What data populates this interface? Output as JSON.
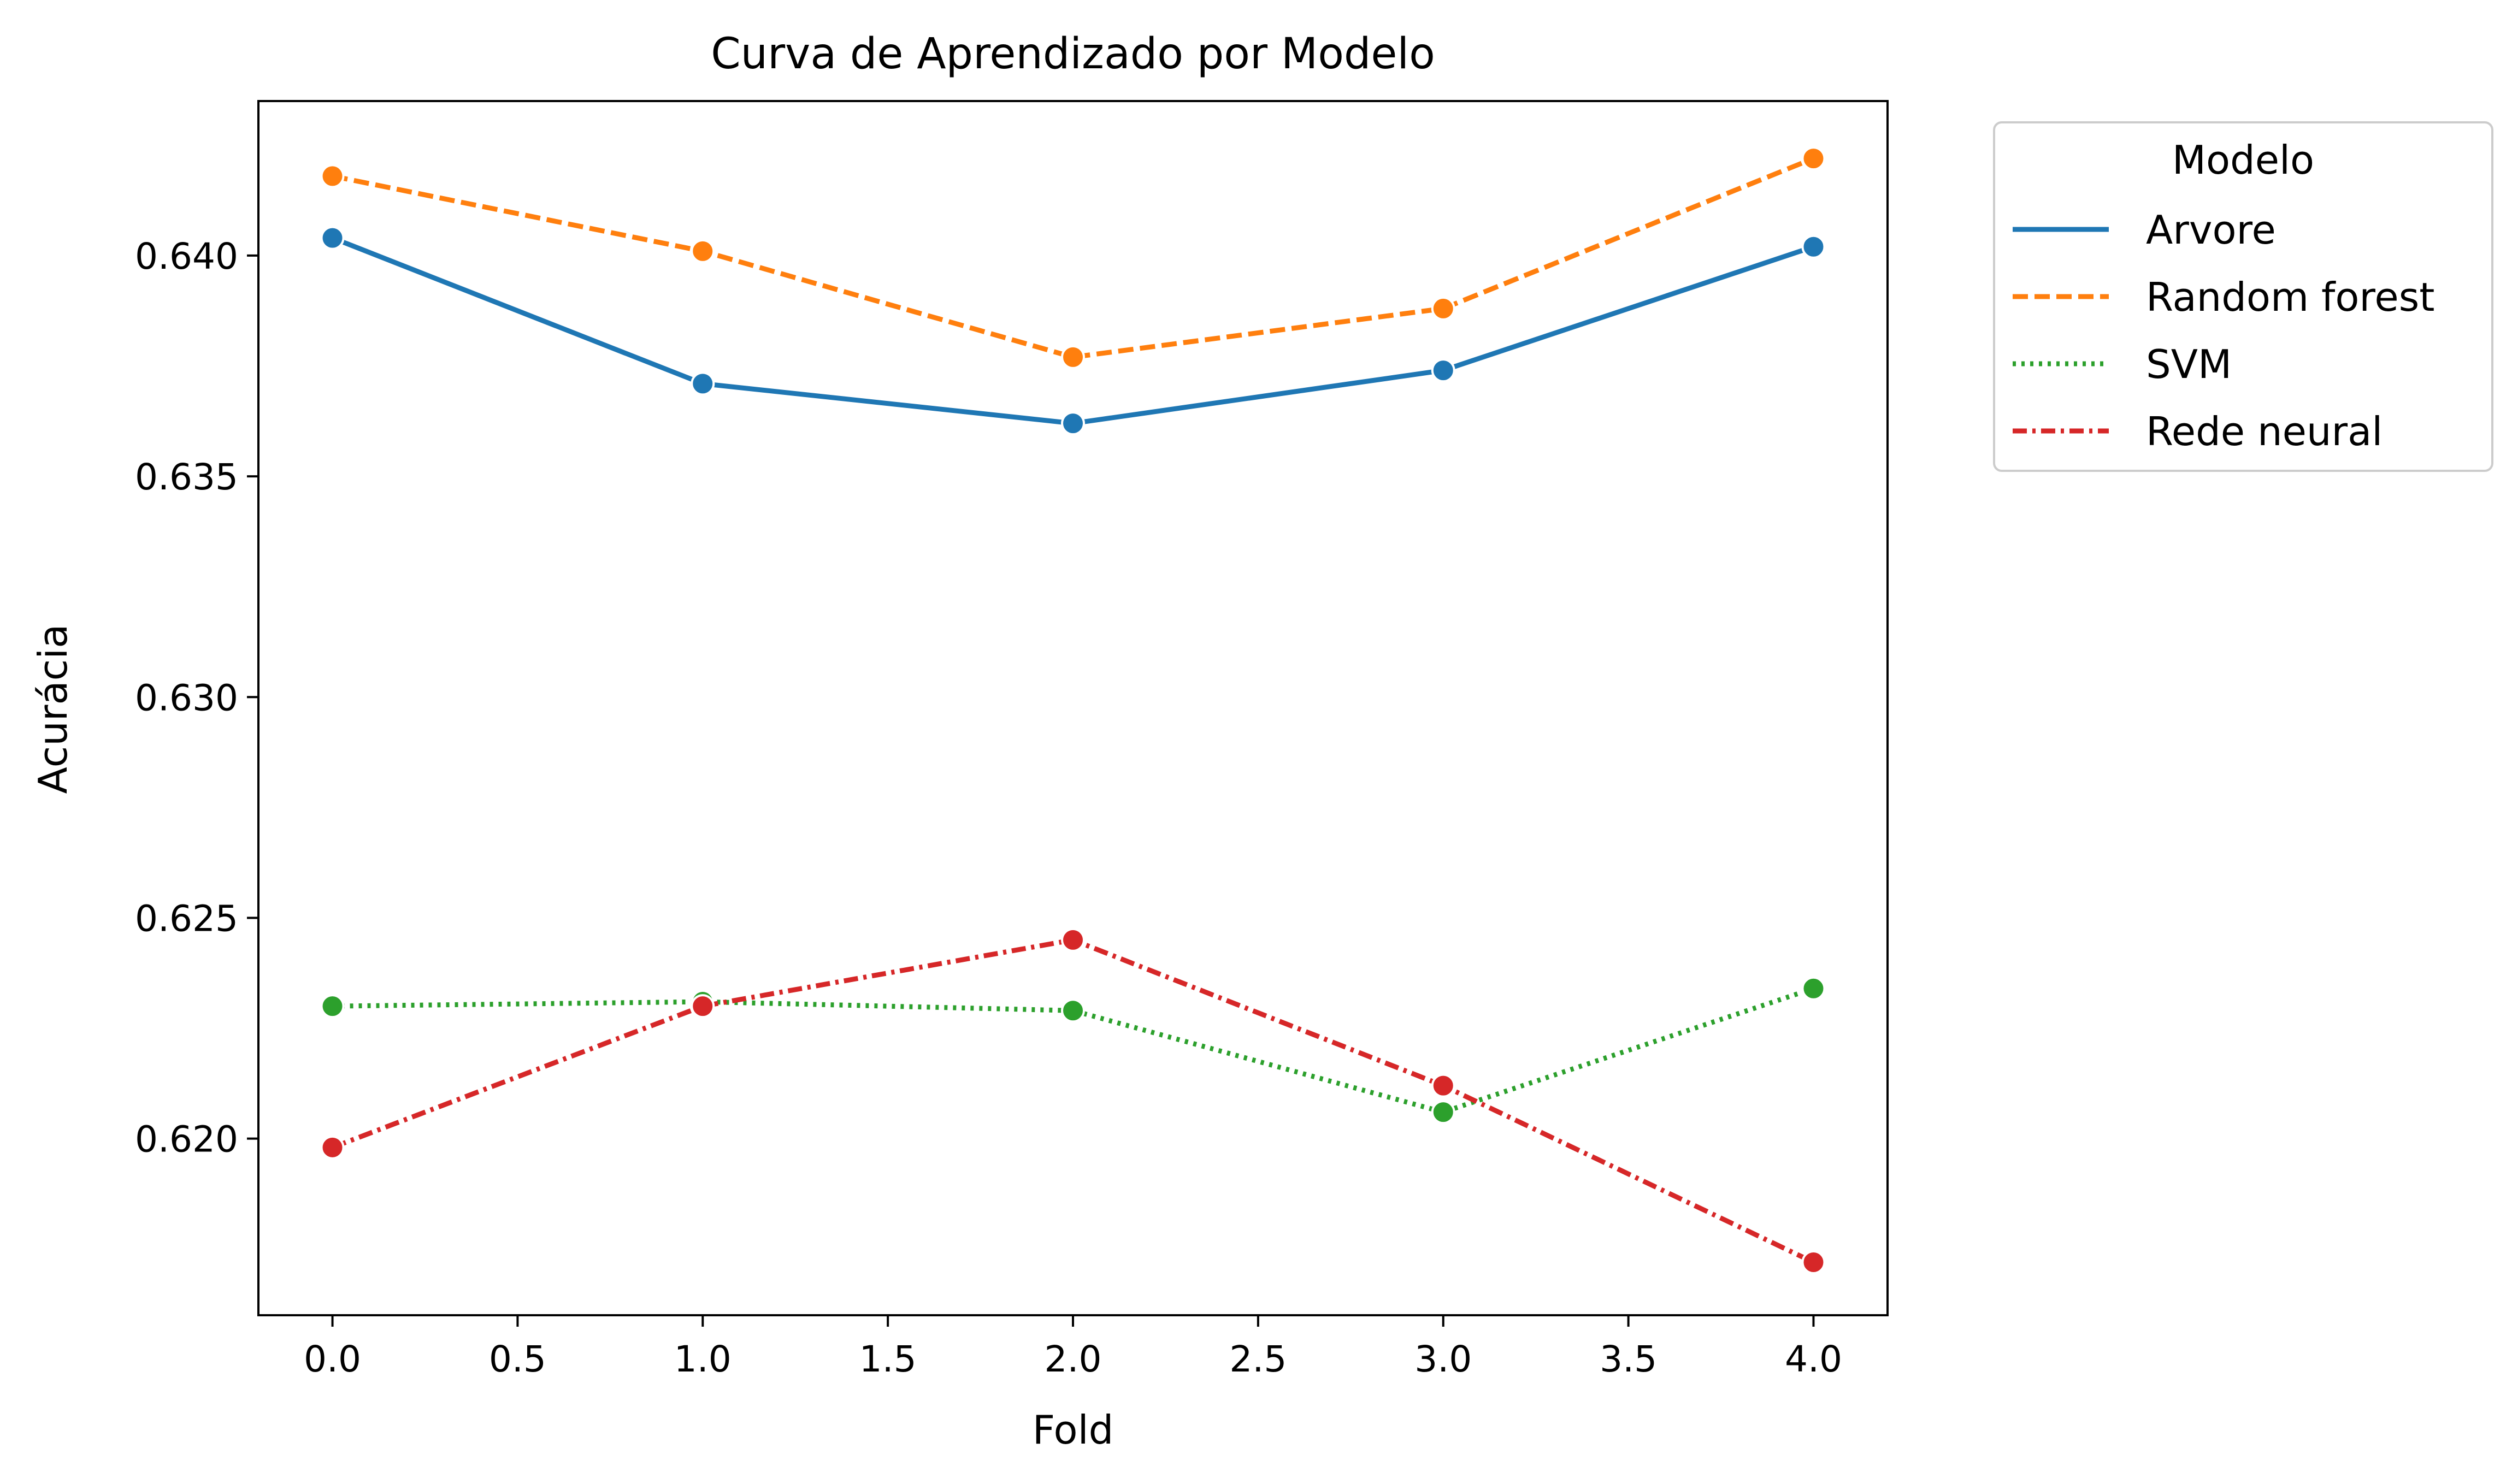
{
  "chart_data": {
    "type": "line",
    "title": "Curva de Aprendizado por Modelo",
    "xlabel": "Fold",
    "ylabel": "Acurácia",
    "xlim": [
      -0.2,
      4.2
    ],
    "ylim": [
      0.616,
      0.6435
    ],
    "x_ticks": [
      0.0,
      0.5,
      1.0,
      1.5,
      2.0,
      2.5,
      3.0,
      3.5,
      4.0
    ],
    "x_tick_labels": [
      "0.0",
      "0.5",
      "1.0",
      "1.5",
      "2.0",
      "2.5",
      "3.0",
      "3.5",
      "4.0"
    ],
    "y_ticks": [
      0.62,
      0.625,
      0.63,
      0.635,
      0.64
    ],
    "y_tick_labels": [
      "0.620",
      "0.625",
      "0.630",
      "0.635",
      "0.640"
    ],
    "grid": false,
    "legend": {
      "title": "Modelo",
      "placement": "outside-top-right"
    },
    "x": [
      0,
      1,
      2,
      3,
      4
    ],
    "series": [
      {
        "name": "Arvore",
        "color": "#1f77b4",
        "dash": "solid",
        "values": [
          0.6404,
          0.6371,
          0.6362,
          0.6374,
          0.6402
        ]
      },
      {
        "name": "Random forest",
        "color": "#ff7f0e",
        "dash": "dashed",
        "values": [
          0.6418,
          0.6401,
          0.6377,
          0.6388,
          0.6422
        ]
      },
      {
        "name": "SVM",
        "color": "#2ca02c",
        "dash": "dotted",
        "values": [
          0.623,
          0.6231,
          0.6229,
          0.6206,
          0.6234
        ]
      },
      {
        "name": "Rede neural",
        "color": "#d62728",
        "dash": "dashdot",
        "values": [
          0.6198,
          0.623,
          0.6245,
          0.6212,
          0.6172
        ]
      }
    ]
  }
}
